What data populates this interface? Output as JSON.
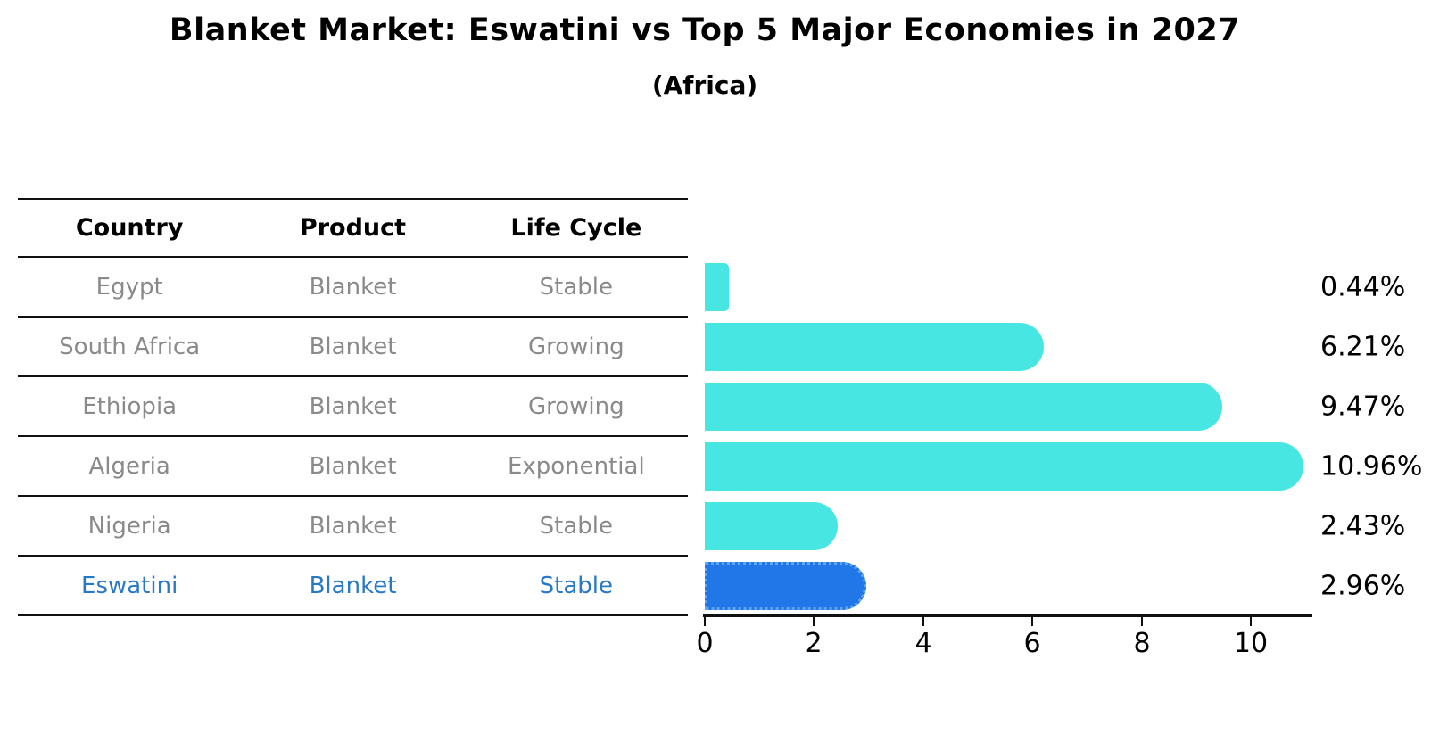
{
  "title": "Blanket Market: Eswatini vs Top 5 Major Economies in 2027",
  "subtitle": "(Africa)",
  "table": {
    "headers": [
      "Country",
      "Product",
      "Life Cycle"
    ],
    "rows": [
      {
        "country": "Egypt",
        "product": "Blanket",
        "life_cycle": "Stable",
        "highlighted": false
      },
      {
        "country": "South Africa",
        "product": "Blanket",
        "life_cycle": "Growing",
        "highlighted": false
      },
      {
        "country": "Ethiopia",
        "product": "Blanket",
        "life_cycle": "Growing",
        "highlighted": false
      },
      {
        "country": "Algeria",
        "product": "Blanket",
        "life_cycle": "Exponential",
        "highlighted": false
      },
      {
        "country": "Nigeria",
        "product": "Blanket",
        "life_cycle": "Stable",
        "highlighted": false
      },
      {
        "country": "Eswatini",
        "product": "Blanket",
        "life_cycle": "Stable",
        "highlighted": true
      }
    ]
  },
  "chart_data": {
    "type": "bar",
    "orientation": "horizontal",
    "title": "Blanket Market: Eswatini vs Top 5 Major Economies in 2027",
    "subtitle": "(Africa)",
    "categories": [
      "Egypt",
      "South Africa",
      "Ethiopia",
      "Algeria",
      "Nigeria",
      "Eswatini"
    ],
    "values": [
      0.44,
      6.21,
      9.47,
      10.96,
      2.43,
      2.96
    ],
    "value_labels": [
      "0.44%",
      "6.21%",
      "9.47%",
      "10.96%",
      "2.43%",
      "2.96%"
    ],
    "xlabel": "",
    "ylabel": "",
    "xlim": [
      0,
      11.1
    ],
    "xticks": [
      0,
      2,
      4,
      6,
      8,
      10
    ],
    "grid": false,
    "legend": false,
    "highlight_category": "Eswatini",
    "colors": {
      "bar": "#48e6e2",
      "highlight_bar": "#2176e8",
      "highlight_bar_border": "#5fa6f2",
      "highlight_text": "#2878c8",
      "row_text": "#8a8a8a",
      "header_text": "#000000",
      "value_text": "#000000"
    }
  }
}
